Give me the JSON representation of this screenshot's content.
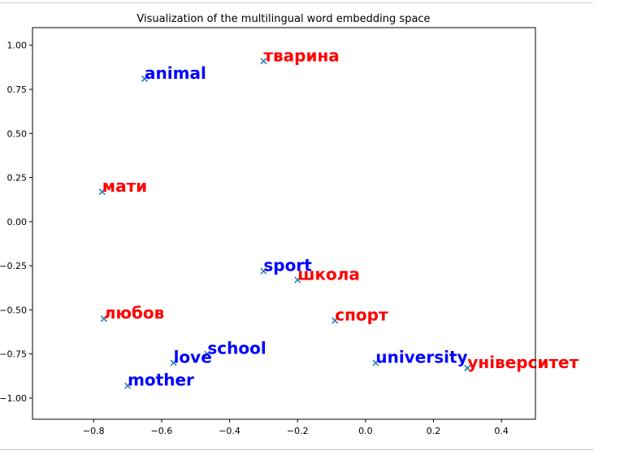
{
  "chart_data": {
    "type": "scatter",
    "title": "Visualization of the multilingual word embedding space",
    "xlabel": "",
    "ylabel": "",
    "xlim": [
      -0.98,
      0.5
    ],
    "ylim": [
      -1.12,
      1.1
    ],
    "xticks": [
      -0.8,
      -0.6,
      -0.4,
      -0.2,
      0.0,
      0.2,
      0.4
    ],
    "xtick_labels": [
      "−0.8",
      "−0.6",
      "−0.4",
      "−0.2",
      "0.0",
      "0.2",
      "0.4"
    ],
    "yticks": [
      1.0,
      0.75,
      0.5,
      0.25,
      0.0,
      -0.25,
      -0.5,
      -0.75,
      -1.0
    ],
    "ytick_labels": [
      "1.00",
      "0.75",
      "0.50",
      "0.25",
      "0.00",
      "−0.25",
      "−0.50",
      "−0.75",
      "−1.00"
    ],
    "grid": false,
    "marker": "x",
    "marker_color": "#1f77b4",
    "language_colors": {
      "english": "#0000ff",
      "ukrainian": "#ff0000"
    },
    "points": [
      {
        "label": "animal",
        "x": -0.65,
        "y": 0.81,
        "lang": "english"
      },
      {
        "label": "тварина",
        "x": -0.3,
        "y": 0.91,
        "lang": "ukrainian"
      },
      {
        "label": "мати",
        "x": -0.775,
        "y": 0.17,
        "lang": "ukrainian"
      },
      {
        "label": "sport",
        "x": -0.3,
        "y": -0.28,
        "lang": "english"
      },
      {
        "label": "школа",
        "x": -0.2,
        "y": -0.33,
        "lang": "ukrainian"
      },
      {
        "label": "любов",
        "x": -0.77,
        "y": -0.55,
        "lang": "ukrainian"
      },
      {
        "label": "спорт",
        "x": -0.09,
        "y": -0.56,
        "lang": "ukrainian"
      },
      {
        "label": "school",
        "x": -0.465,
        "y": -0.75,
        "lang": "english"
      },
      {
        "label": "love",
        "x": -0.565,
        "y": -0.8,
        "lang": "english"
      },
      {
        "label": "university",
        "x": 0.03,
        "y": -0.8,
        "lang": "english"
      },
      {
        "label": "університет",
        "x": 0.3,
        "y": -0.83,
        "lang": "ukrainian"
      },
      {
        "label": "mother",
        "x": -0.7,
        "y": -0.93,
        "lang": "english"
      }
    ]
  }
}
